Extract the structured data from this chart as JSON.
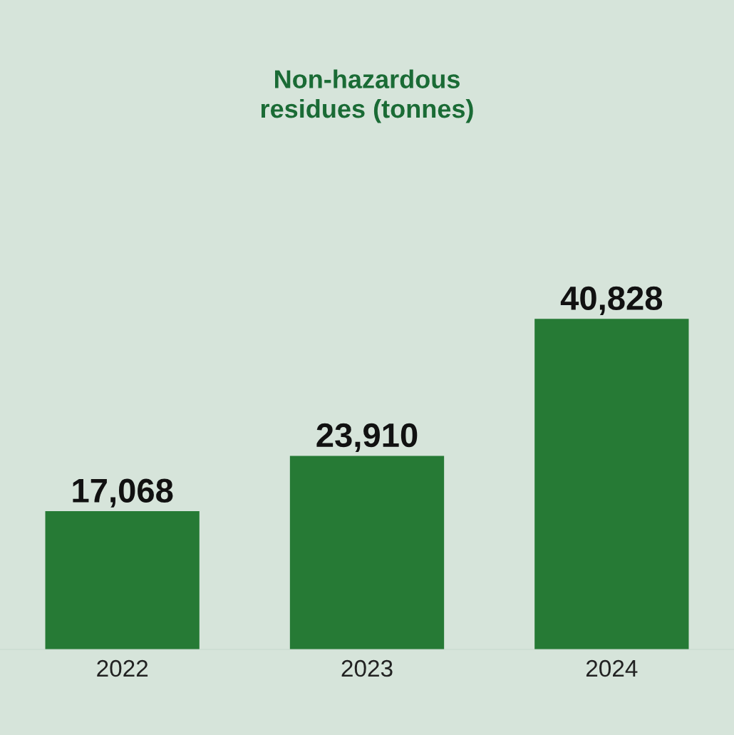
{
  "chart_data": {
    "type": "bar",
    "title": "Non-hazardous\nresidues (tonnes)",
    "categories": [
      "2022",
      "2023",
      "2024"
    ],
    "values": [
      17068,
      23910,
      40828
    ],
    "value_labels": [
      "17,068",
      "23,910",
      "40,828"
    ],
    "color": "#267a35",
    "grid": false
  }
}
